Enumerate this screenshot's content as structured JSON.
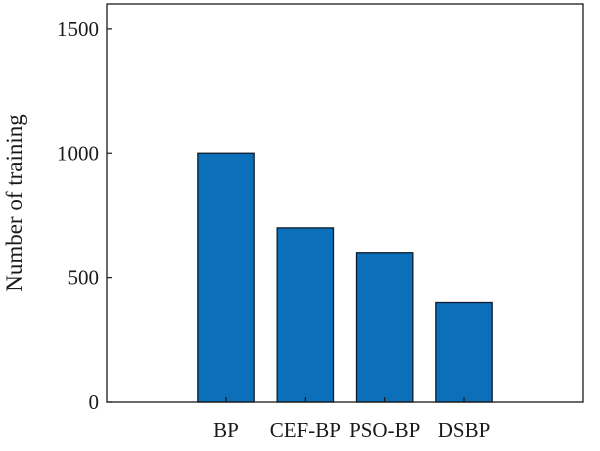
{
  "chart_data": {
    "type": "bar",
    "title": "",
    "xlabel": "",
    "ylabel": "Number of training",
    "categories": [
      "BP",
      "CEF-BP",
      "PSO-BP",
      "DSBP"
    ],
    "values": [
      1000,
      700,
      600,
      400
    ],
    "ylim": [
      0,
      1600
    ],
    "yticks": [
      0,
      500,
      1000,
      1500
    ],
    "ytick_labels": [
      "0",
      "500",
      "1000",
      "1500"
    ],
    "grid": false,
    "legend": "none",
    "bar_color": "#0c6fb9",
    "bar_edge_color": "#0d1b2a"
  }
}
